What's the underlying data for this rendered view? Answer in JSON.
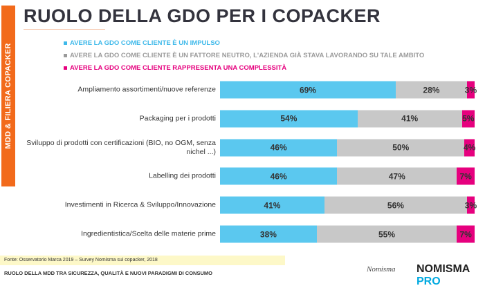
{
  "sidebar_label": "MDD & FILIERA COPACKER",
  "chart_data": {
    "type": "bar",
    "orientation": "horizontal",
    "stacked": true,
    "title": "RUOLO DELLA GDO PER I COPACKER",
    "categories": [
      "Ampliamento assortimenti/nuove referenze",
      "Packaging per i prodotti",
      "Sviluppo di prodotti con certificazioni (BIO, no OGM, senza nichel ...)",
      "Labelling dei prodotti",
      "Investimenti in Ricerca & Sviluppo/Innovazione",
      "Ingredientistica/Scelta delle materie prime"
    ],
    "series": [
      {
        "name": "AVERE LA GDO COME CLIENTE È UN IMPULSO",
        "color": "#5bc8ef",
        "values": [
          69,
          54,
          46,
          46,
          41,
          38
        ]
      },
      {
        "name": "AVERE LA GDO COME CLIENTE È UN FATTORE NEUTRO, L'AZIENDA GIÀ STAVA LAVORANDO SU TALE AMBITO",
        "color": "#c8c8c8",
        "values": [
          28,
          41,
          50,
          47,
          56,
          55
        ]
      },
      {
        "name": "AVERE LA GDO COME CLIENTE RAPPRESENTA UNA COMPLESSITÀ",
        "color": "#e6007e",
        "values": [
          3,
          5,
          4,
          7,
          3,
          7
        ]
      }
    ],
    "legend_colors": [
      "#3fb9ea",
      "#9a9a9a",
      "#e6007e"
    ],
    "legend_placement": "top",
    "unit": "%",
    "xlim": [
      0,
      100
    ]
  },
  "footer": {
    "source": "Fonte: Osservatorio Marca 2019 – Survey Nomisma sui copacker, 2018",
    "subtitle": "RUOLO DELLA MDD TRA SICUREZZA, QUALITÀ E NUOVI PARADIGMI DI CONSUMO",
    "logo1": "Nomisma",
    "logo2a": "NOMISMA",
    "logo2b": "PRO"
  }
}
